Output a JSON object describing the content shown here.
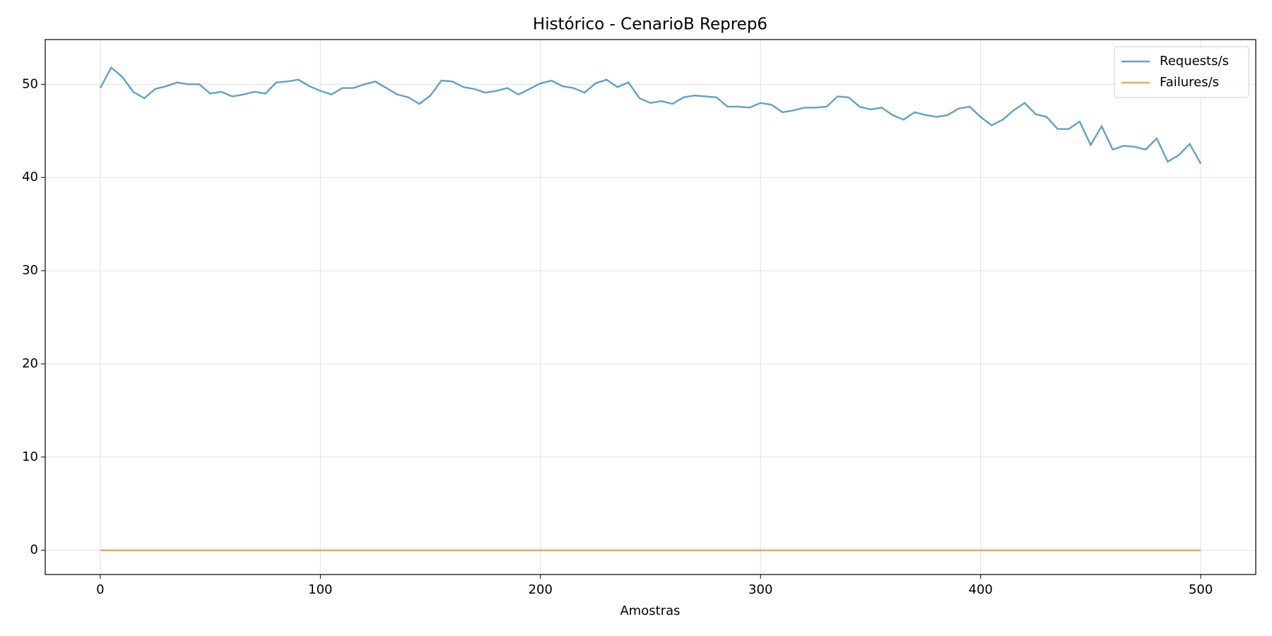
{
  "chart_data": {
    "type": "line",
    "title": "Histórico - CenarioB Reprep6",
    "xlabel": "Amostras",
    "x": [
      0,
      5,
      10,
      15,
      20,
      25,
      30,
      35,
      40,
      45,
      50,
      55,
      60,
      65,
      70,
      75,
      80,
      85,
      90,
      95,
      100,
      105,
      110,
      115,
      120,
      125,
      130,
      135,
      140,
      145,
      150,
      155,
      160,
      165,
      170,
      175,
      180,
      185,
      190,
      195,
      200,
      205,
      210,
      215,
      220,
      225,
      230,
      235,
      240,
      245,
      250,
      255,
      260,
      265,
      270,
      275,
      280,
      285,
      290,
      295,
      300,
      305,
      310,
      315,
      320,
      325,
      330,
      335,
      340,
      345,
      350,
      355,
      360,
      365,
      370,
      375,
      380,
      385,
      390,
      395,
      400,
      405,
      410,
      415,
      420,
      425,
      430,
      435,
      440,
      445,
      450,
      455,
      460,
      465,
      470,
      475,
      480,
      485,
      490,
      495,
      500
    ],
    "series": [
      {
        "name": "Requests/s",
        "color": "#1f77b4",
        "values": [
          49.6,
          51.8,
          50.8,
          49.2,
          48.5,
          49.5,
          49.8,
          50.2,
          50.0,
          50.0,
          49.0,
          49.2,
          48.7,
          48.9,
          49.2,
          49.0,
          50.2,
          50.3,
          50.5,
          49.8,
          49.3,
          48.9,
          49.6,
          49.6,
          50.0,
          50.3,
          49.6,
          48.9,
          48.6,
          47.9,
          48.8,
          50.4,
          50.3,
          49.7,
          49.5,
          49.1,
          49.3,
          49.6,
          48.9,
          49.5,
          50.1,
          50.4,
          49.8,
          49.6,
          49.1,
          50.1,
          50.5,
          49.7,
          50.2,
          48.5,
          48.0,
          48.2,
          47.9,
          48.6,
          48.8,
          48.7,
          48.6,
          47.6,
          47.6,
          47.5,
          48.0,
          47.8,
          47.0,
          47.2,
          47.5,
          47.5,
          47.6,
          48.7,
          48.6,
          47.6,
          47.3,
          47.5,
          46.7,
          46.2,
          47.0,
          46.7,
          46.5,
          46.7,
          47.4,
          47.6,
          46.5,
          45.6,
          46.2,
          47.2,
          48.0,
          46.8,
          46.5,
          45.2,
          45.2,
          46.0,
          43.5,
          45.5,
          43.0,
          43.4,
          43.3,
          43.0,
          44.2,
          41.7,
          42.4,
          43.6,
          41.5
        ]
      },
      {
        "name": "Failures/s",
        "color": "#ff7f0e",
        "values": [
          0,
          0,
          0,
          0,
          0,
          0,
          0,
          0,
          0,
          0,
          0,
          0,
          0,
          0,
          0,
          0,
          0,
          0,
          0,
          0,
          0,
          0,
          0,
          0,
          0,
          0,
          0,
          0,
          0,
          0,
          0,
          0,
          0,
          0,
          0,
          0,
          0,
          0,
          0,
          0,
          0,
          0,
          0,
          0,
          0,
          0,
          0,
          0,
          0,
          0,
          0,
          0,
          0,
          0,
          0,
          0,
          0,
          0,
          0,
          0,
          0,
          0,
          0,
          0,
          0,
          0,
          0,
          0,
          0,
          0,
          0,
          0,
          0,
          0,
          0,
          0,
          0,
          0,
          0,
          0,
          0,
          0,
          0,
          0,
          0,
          0,
          0,
          0,
          0,
          0,
          0,
          0,
          0,
          0,
          0,
          0,
          0,
          0,
          0,
          0,
          0
        ]
      }
    ],
    "xlim": [
      -25,
      525
    ],
    "ylim": [
      -2.6,
      54.8
    ],
    "xticks": [
      0,
      100,
      200,
      300,
      400,
      500
    ],
    "yticks": [
      0,
      10,
      20,
      30,
      40,
      50
    ],
    "grid": true,
    "legend": "upper right"
  }
}
